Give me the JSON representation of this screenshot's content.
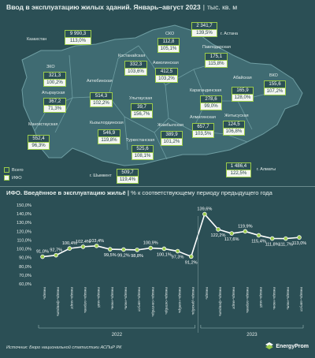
{
  "header": {
    "title": "Ввод в эксплуатацию жилых зданий. Январь–август 2023",
    "unit": "тыс. кв. м"
  },
  "map": {
    "regions": [
      {
        "id": "kazakhstan",
        "name": "Казахстан",
        "total": "9 990,3",
        "ifo": "113,0%"
      },
      {
        "id": "astana",
        "name": "г. Астана",
        "total": "2 341,7",
        "ifo": "139,5%"
      },
      {
        "id": "sko",
        "name": "СКО",
        "total": "112,8",
        "ifo": "105,1%"
      },
      {
        "id": "kostanay",
        "name": "Костанайская",
        "total": "332,3",
        "ifo": "103,6%"
      },
      {
        "id": "akmola",
        "name": "Акмолинская",
        "total": "412,5",
        "ifo": "103,2%"
      },
      {
        "id": "pavlodar",
        "name": "Павлодарская",
        "total": "175,1",
        "ifo": "115,8%"
      },
      {
        "id": "zko",
        "name": "ЗКО",
        "total": "321,3",
        "ifo": "100,2%"
      },
      {
        "id": "aktobe",
        "name": "Актюбинская",
        "total": "514,3",
        "ifo": "102,2%"
      },
      {
        "id": "atyrau",
        "name": "Атырауская",
        "total": "367,2",
        "ifo": "71,3%"
      },
      {
        "id": "karaganda",
        "name": "Карагандинская",
        "total": "278,6",
        "ifo": "99,0%"
      },
      {
        "id": "abai",
        "name": "Абайская",
        "total": "165,9",
        "ifo": "128,0%"
      },
      {
        "id": "vko",
        "name": "ВКО",
        "total": "155,6",
        "ifo": "107,2%"
      },
      {
        "id": "ulytau",
        "name": "Улытауская",
        "total": "39,7",
        "ifo": "156,7%"
      },
      {
        "id": "mangystau",
        "name": "Мангистауская",
        "total": "552,4",
        "ifo": "96,3%"
      },
      {
        "id": "kyzylorda",
        "name": "Кызылординская",
        "total": "546,9",
        "ifo": "119,8%"
      },
      {
        "id": "zhambyl",
        "name": "Жамбылская",
        "total": "389,9",
        "ifo": "101,2%"
      },
      {
        "id": "almaty_obl",
        "name": "Алматинская",
        "total": "657,7",
        "ifo": "103,5%"
      },
      {
        "id": "zhetysu",
        "name": "Жетысуская",
        "total": "124,5",
        "ifo": "106,8%"
      },
      {
        "id": "turkestan",
        "name": "Туркестанская",
        "total": "525,6",
        "ifo": "108,1%"
      },
      {
        "id": "shymkent",
        "name": "г. Шымкент",
        "total": "509,7",
        "ifo": "119,4%"
      },
      {
        "id": "almaty",
        "name": "г. Алматы",
        "total": "1 486,4",
        "ifo": "122,5%"
      }
    ],
    "legend": {
      "total_label": "Всего",
      "ifo_label": "ИФО"
    },
    "colors": {
      "region_fill": "#3f6b72",
      "region_stroke": "#6f9ea3",
      "box_border": "#9acb4a",
      "background": "#2b4f55"
    }
  },
  "chart_title": {
    "title": "ИФО. Введённое в эксплуатацию жильё",
    "unit": "% к соответствующему периоду предыдущего года"
  },
  "chart_data": {
    "type": "line",
    "categories": [
      "январь",
      "январь-февраль",
      "январь-март",
      "январь-апрель",
      "январь-май",
      "январь-июнь",
      "январь-июль",
      "январь-август",
      "январь-сентябрь",
      "январь-октябрь",
      "январь-ноябрь",
      "январь-декабрь",
      "январь",
      "январь-февраль",
      "январь-март",
      "январь-апрель",
      "январь-май",
      "январь-июнь",
      "январь-июль",
      "январь-август"
    ],
    "values": [
      91.0,
      92.7,
      100.4,
      102.4,
      103.4,
      99.5,
      99.2,
      98.8,
      100.9,
      100.1,
      97.3,
      91.2,
      139.6,
      122.2,
      117.6,
      119.9,
      115.4,
      111.8,
      111.7,
      113.0
    ],
    "value_labels": [
      "91,0%",
      "92,7%",
      "100,4%",
      "102,4%",
      "103,4%",
      "99,5%",
      "99,2%",
      "98,8%",
      "100,9%",
      "100,1%",
      "97,3%",
      "91,2%",
      "139,6%",
      "122,2%",
      "117,6%",
      "119,9%",
      "115,4%",
      "111,8%",
      "111,7%",
      "113,0%"
    ],
    "year_groups": [
      {
        "label": "2022",
        "from": 0,
        "to": 11
      },
      {
        "label": "2023",
        "from": 12,
        "to": 19
      }
    ],
    "yticks": [
      "150,0%",
      "140,0%",
      "130,0%",
      "120,0%",
      "110,0%",
      "100,0%",
      "90,0%",
      "80,0%",
      "70,0%",
      "60,0%"
    ],
    "ytick_values": [
      150,
      140,
      130,
      120,
      110,
      100,
      90,
      80,
      70,
      60
    ],
    "ylim": [
      60,
      150
    ],
    "grid": false,
    "colors": {
      "line": "#ffffff",
      "marker_fill": "#9acb4a",
      "marker_stroke": "#ffffff"
    }
  },
  "footer": {
    "source": "Источник: Бюро национальной статистики АСПиР РК",
    "logo": "EnergyProm"
  }
}
